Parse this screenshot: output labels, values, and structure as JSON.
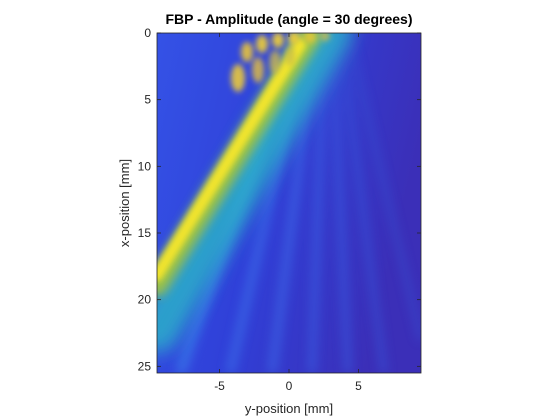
{
  "chart_data": {
    "type": "heatmap",
    "title": "FBP - Amplitude (angle  = 30 degrees)",
    "xlabel": "y-position [mm]",
    "ylabel": "x-position [mm]",
    "xlim": [
      -9.5,
      9.5
    ],
    "ylim": [
      0,
      25.5
    ],
    "y_direction": "reversed",
    "x_ticks": [
      {
        "value": -5,
        "label": "-5"
      },
      {
        "value": 0,
        "label": "0"
      },
      {
        "value": 5,
        "label": "5"
      }
    ],
    "y_ticks": [
      {
        "value": 0,
        "label": "0"
      },
      {
        "value": 5,
        "label": "5"
      },
      {
        "value": 10,
        "label": "10"
      },
      {
        "value": 15,
        "label": "15"
      },
      {
        "value": 20,
        "label": "20"
      },
      {
        "value": 25,
        "label": "25"
      }
    ],
    "colormap": "parula",
    "colors": {
      "low": "#3e26a8",
      "mid": "#22b5b0",
      "high": "#f9fb0e"
    },
    "beam_angle_deg": 30,
    "grid": false,
    "colorbar": false
  }
}
